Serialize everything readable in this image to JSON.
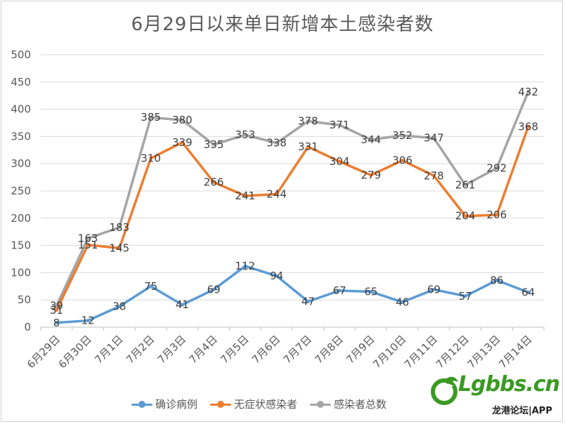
{
  "chart_data": {
    "type": "line",
    "title": "6月29日以来单日新增本土感染者数",
    "categories": [
      "6月29日",
      "6月30日",
      "7月1日",
      "7月2日",
      "7月3日",
      "7月4日",
      "7月5日",
      "7月6日",
      "7月7日",
      "7月8日",
      "7月9日",
      "7月10日",
      "7月11日",
      "7月12日",
      "7月13日",
      "7月14日"
    ],
    "ylim": [
      0,
      500
    ],
    "yticks": [
      0,
      50,
      100,
      150,
      200,
      250,
      300,
      350,
      400,
      450,
      500
    ],
    "grid": true,
    "legend_position": "bottom",
    "series": [
      {
        "name": "确诊病例",
        "color": "#5b9bd5",
        "values": [
          8,
          12,
          38,
          75,
          41,
          69,
          112,
          94,
          47,
          67,
          65,
          46,
          69,
          57,
          86,
          64
        ]
      },
      {
        "name": "无症状感染者",
        "color": "#ed7d31",
        "values": [
          31,
          151,
          145,
          310,
          339,
          266,
          241,
          244,
          331,
          304,
          279,
          306,
          278,
          204,
          206,
          368
        ]
      },
      {
        "name": "感染者总数",
        "color": "#a5a5a5",
        "values": [
          39,
          163,
          183,
          385,
          380,
          335,
          353,
          338,
          378,
          371,
          344,
          352,
          347,
          261,
          292,
          432
        ]
      }
    ]
  },
  "watermark": {
    "brand": "Lgbbs.cn",
    "subtitle": "龙港论坛|APP"
  }
}
